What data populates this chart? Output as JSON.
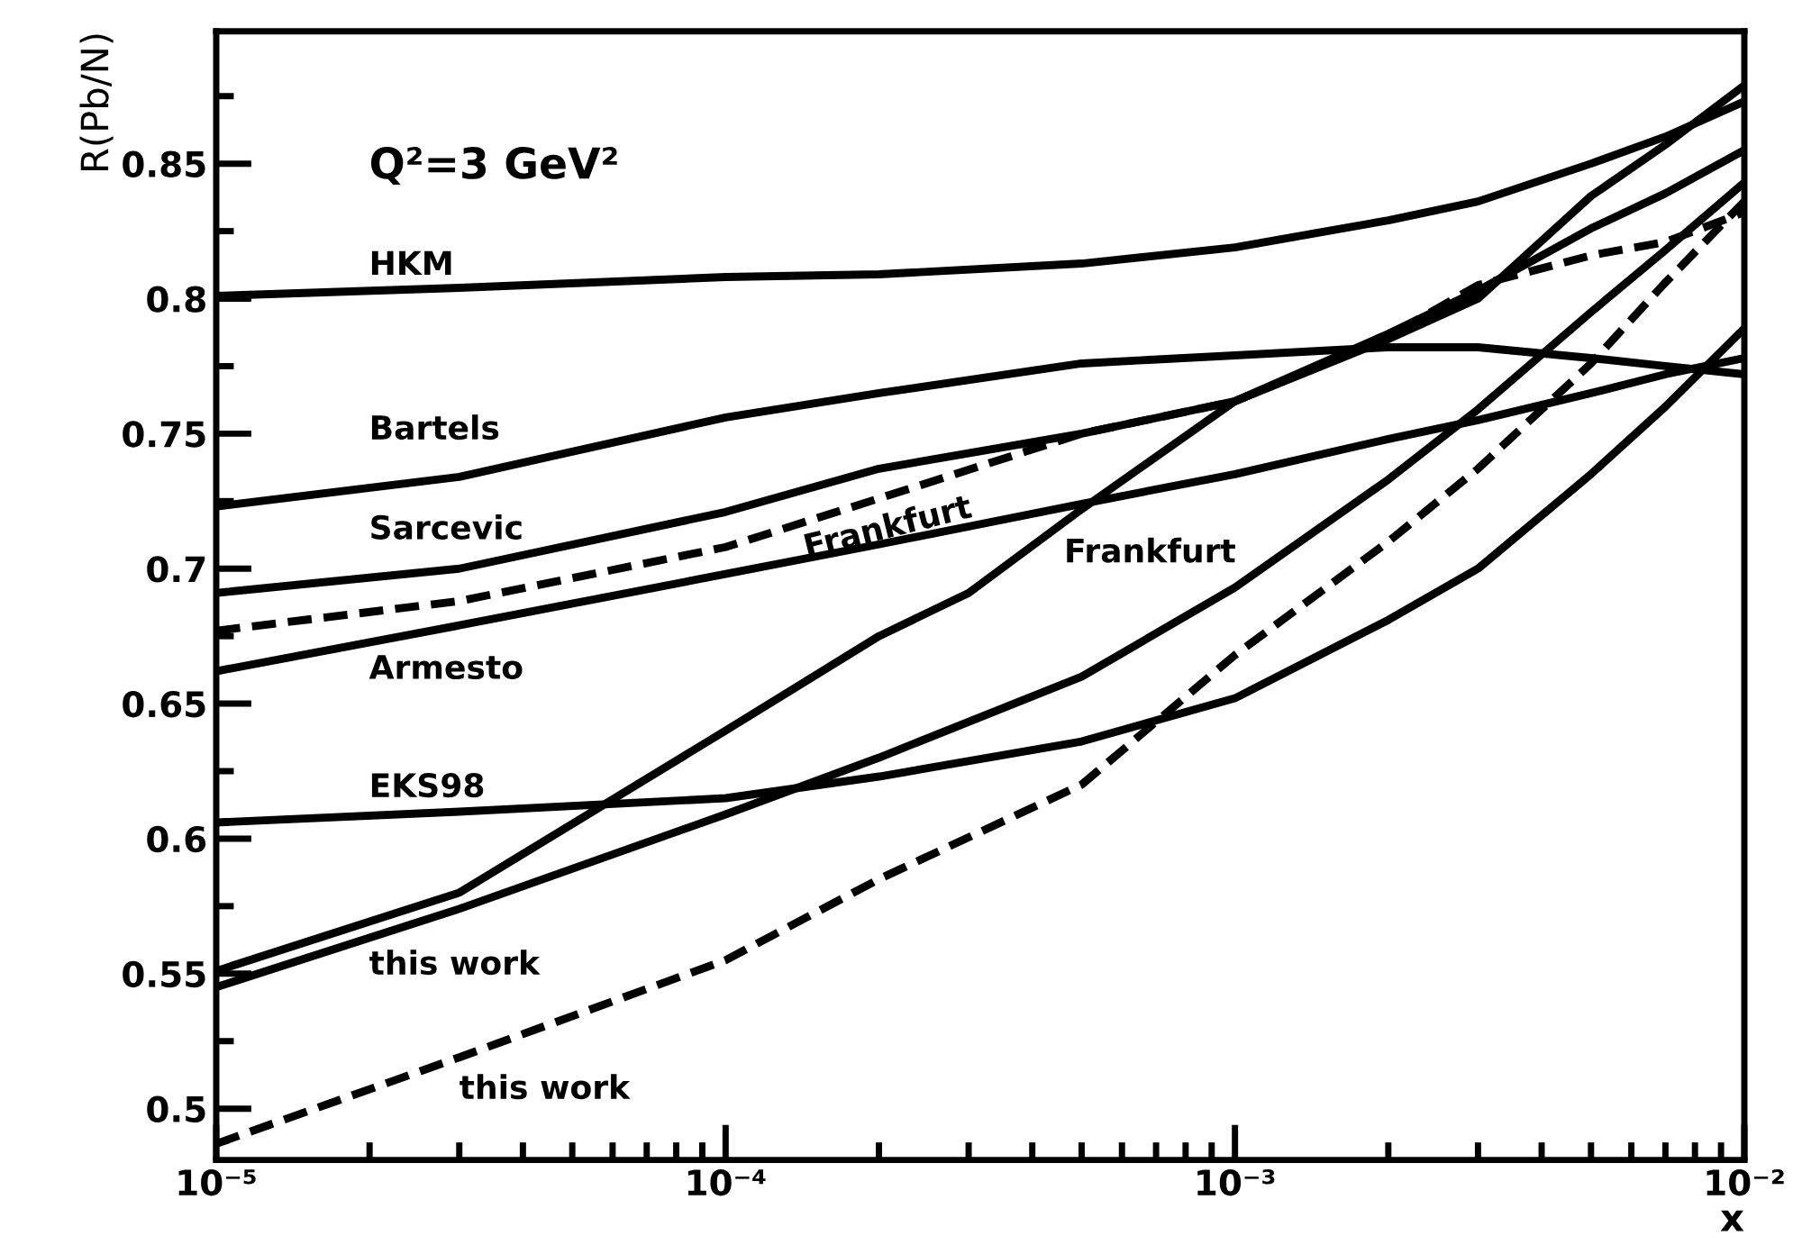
{
  "chart_data": {
    "type": "line",
    "xlabel": "x",
    "ylabel": "R(Pb/N)",
    "log": "x",
    "grid": false,
    "marker": "none",
    "x": [
      1e-05,
      3e-05,
      0.0001,
      0.0002,
      0.0005,
      0.001,
      0.002,
      0.003,
      0.005,
      0.007,
      0.01
    ],
    "xlim": [
      1e-05,
      0.01
    ],
    "xticks": [
      {
        "value": 1e-05,
        "label": "10⁻⁵"
      },
      {
        "value": 0.0001,
        "label": "10⁻⁴"
      },
      {
        "value": 0.001,
        "label": "10⁻³"
      },
      {
        "value": 0.01,
        "label": "10⁻²"
      }
    ],
    "ylim": [
      0.481,
      0.899
    ],
    "yticks": [
      0.5,
      0.55,
      0.6,
      0.65,
      0.7,
      0.75,
      0.8,
      0.85
    ],
    "series": [
      {
        "name": "HKM",
        "color": "#000000",
        "line_style": "solid",
        "values": [
          0.801,
          0.804,
          0.808,
          0.809,
          0.813,
          0.819,
          0.829,
          0.836,
          0.85,
          0.86,
          0.873
        ]
      },
      {
        "name": "Bartels",
        "color": "#000000",
        "line_style": "solid",
        "values": [
          0.723,
          0.734,
          0.756,
          0.765,
          0.776,
          0.779,
          0.782,
          0.782,
          0.778,
          0.775,
          0.772
        ]
      },
      {
        "name": "Sarcevic",
        "color": "#000000",
        "line_style": "solid",
        "values": [
          0.691,
          0.7,
          0.721,
          0.737,
          0.75,
          0.762,
          0.787,
          0.803,
          0.826,
          0.839,
          0.855
        ]
      },
      {
        "name": "Frankfurt",
        "color": "#000000",
        "line_style": "dashed",
        "values": [
          0.677,
          0.688,
          0.708,
          0.726,
          0.75,
          0.762,
          0.786,
          0.805,
          0.816,
          0.821,
          0.832
        ]
      },
      {
        "name": "Armesto",
        "color": "#000000",
        "line_style": "solid",
        "values": [
          0.662,
          0.679,
          0.698,
          0.709,
          0.724,
          0.735,
          0.748,
          0.755,
          0.765,
          0.772,
          0.778
        ]
      },
      {
        "name": "EKS98",
        "color": "#000000",
        "line_style": "solid",
        "values": [
          0.606,
          0.61,
          0.615,
          0.623,
          0.636,
          0.652,
          0.681,
          0.7,
          0.735,
          0.76,
          0.789
        ]
      },
      {
        "name": "Frankfurt",
        "color": "#000000",
        "line_style": "solid",
        "x": [
          1e-05,
          3e-05,
          0.0001,
          0.0002,
          0.0003,
          0.0005,
          0.001,
          0.002,
          0.003,
          0.005,
          0.007,
          0.01
        ],
        "values": [
          0.551,
          0.58,
          0.64,
          0.675,
          0.691,
          0.722,
          0.762,
          0.785,
          0.8,
          0.838,
          0.857,
          0.879
        ]
      },
      {
        "name": "this work",
        "color": "#000000",
        "line_style": "solid",
        "values": [
          0.545,
          0.574,
          0.609,
          0.63,
          0.66,
          0.693,
          0.733,
          0.759,
          0.795,
          0.818,
          0.843
        ]
      },
      {
        "name": "this work",
        "color": "#000000",
        "line_style": "dashed",
        "values": [
          0.487,
          0.519,
          0.555,
          0.585,
          0.62,
          0.668,
          0.71,
          0.737,
          0.776,
          0.806,
          0.836
        ]
      }
    ],
    "annotations": [
      "Q²=3 GeV²"
    ]
  }
}
